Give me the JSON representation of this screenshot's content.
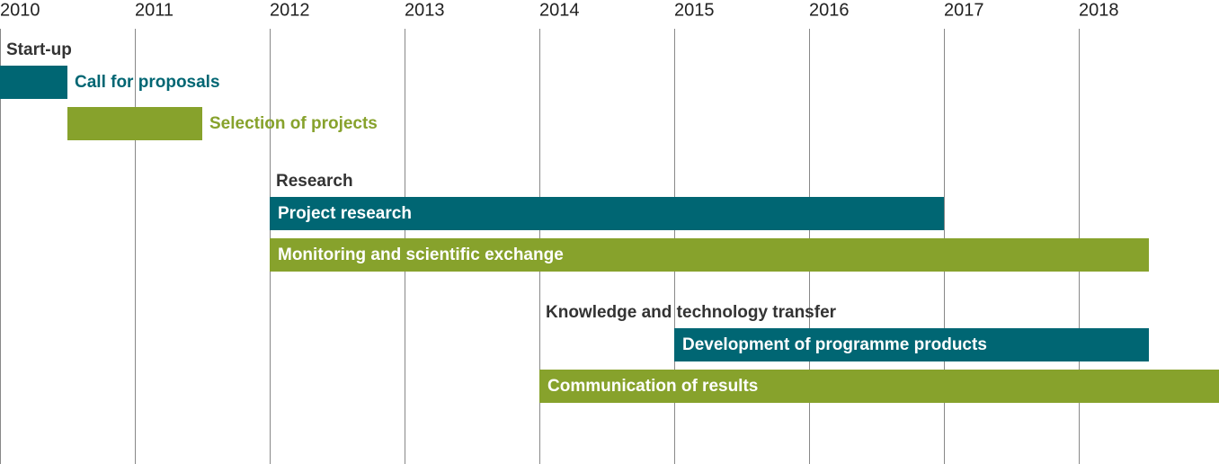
{
  "chart_data": {
    "type": "gantt",
    "xlim": [
      2010,
      2019.04
    ],
    "xticks": [
      2010,
      2011,
      2012,
      2013,
      2014,
      2015,
      2016,
      2017,
      2018
    ],
    "grid": true,
    "groups": [
      {
        "name": "Start-up",
        "tasks": [
          {
            "name": "Call for proposals",
            "start": 2010,
            "end": 2010.5,
            "color": "#006673"
          },
          {
            "name": "Selection of projects",
            "start": 2010.5,
            "end": 2011.5,
            "color": "#87a22c"
          }
        ]
      },
      {
        "name": "Research",
        "tasks": [
          {
            "name": "Project research",
            "start": 2012,
            "end": 2017,
            "color": "#006673"
          },
          {
            "name": "Monitoring and scientific exchange",
            "start": 2012,
            "end": 2018.52,
            "color": "#87a22c"
          }
        ]
      },
      {
        "name": "Knowledge and technology transfer",
        "tasks": [
          {
            "name": "Development of programme products",
            "start": 2015,
            "end": 2018.52,
            "color": "#006673"
          },
          {
            "name": "Communication of results",
            "start": 2014,
            "end": 2019.04,
            "color": "#87a22c"
          }
        ]
      }
    ]
  }
}
